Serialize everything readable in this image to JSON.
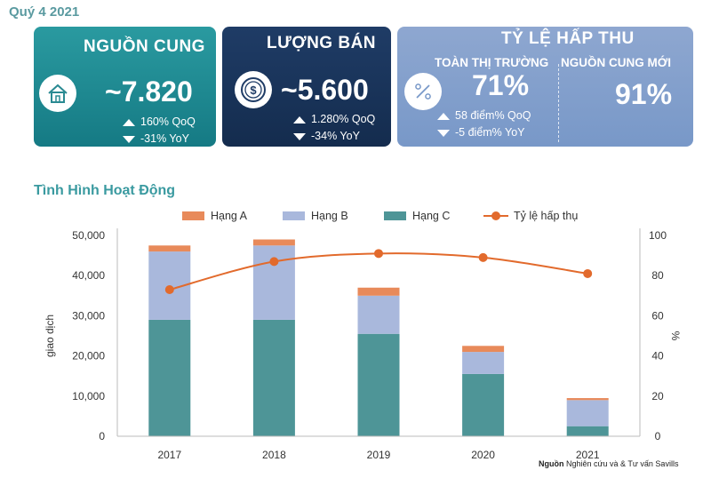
{
  "header": {
    "quarter": "Quý 4 2021"
  },
  "cards": {
    "supply": {
      "title": "NGUỒN CUNG",
      "value": "~7.820",
      "change_up": "160% QoQ",
      "change_down": "-31% YoY",
      "icon": "house-icon"
    },
    "sales": {
      "title": "LƯỢNG BÁN",
      "value": "~5.600",
      "change_up": "1.280% QoQ",
      "change_down": "-34% YoY",
      "icon": "dollar-coin-icon"
    },
    "absorption": {
      "title": "TỶ LỆ HẤP THU",
      "icon": "percent-icon",
      "market_label": "TOÀN THỊ TRƯỜNG",
      "market_value": "71%",
      "change_up": "58 điểm% QoQ",
      "change_down": "-5 điểm% YoY",
      "new_supply_label": "NGUỒN CUNG MỚI",
      "new_supply_value": "91%"
    }
  },
  "section_title": "Tình Hình Hoạt Động",
  "source": {
    "label": "Nguồn",
    "text": " Nghiên cứu và & Tư vấn Savills"
  },
  "colors": {
    "grade_a": "#e88a5a",
    "grade_b": "#a9b8dc",
    "grade_c": "#4e9597",
    "absorption_line": "#e26a2c"
  },
  "chart_data": {
    "type": "bar",
    "stacked": true,
    "categories": [
      "2017",
      "2018",
      "2019",
      "2020",
      "2021"
    ],
    "series": [
      {
        "name": "Hạng C",
        "values": [
          29000,
          29000,
          25500,
          15500,
          2500
        ]
      },
      {
        "name": "Hạng B",
        "values": [
          17000,
          18500,
          9500,
          5500,
          6500
        ]
      },
      {
        "name": "Hạng A",
        "values": [
          1500,
          1500,
          2000,
          1500,
          500
        ]
      }
    ],
    "line_series": {
      "name": "Tỷ lệ hấp thụ",
      "values": [
        73,
        87,
        91,
        89,
        81
      ],
      "axis": "right"
    },
    "ylabel": "giao dịch",
    "y2label": "%",
    "ylim": [
      0,
      50000
    ],
    "yticks": [
      "0",
      "10,000",
      "20,000",
      "30,000",
      "40,000",
      "50,000"
    ],
    "y2lim": [
      0,
      100
    ],
    "y2ticks": [
      "0",
      "20",
      "40",
      "60",
      "80",
      "100"
    ],
    "legend": "top",
    "grid": false
  }
}
